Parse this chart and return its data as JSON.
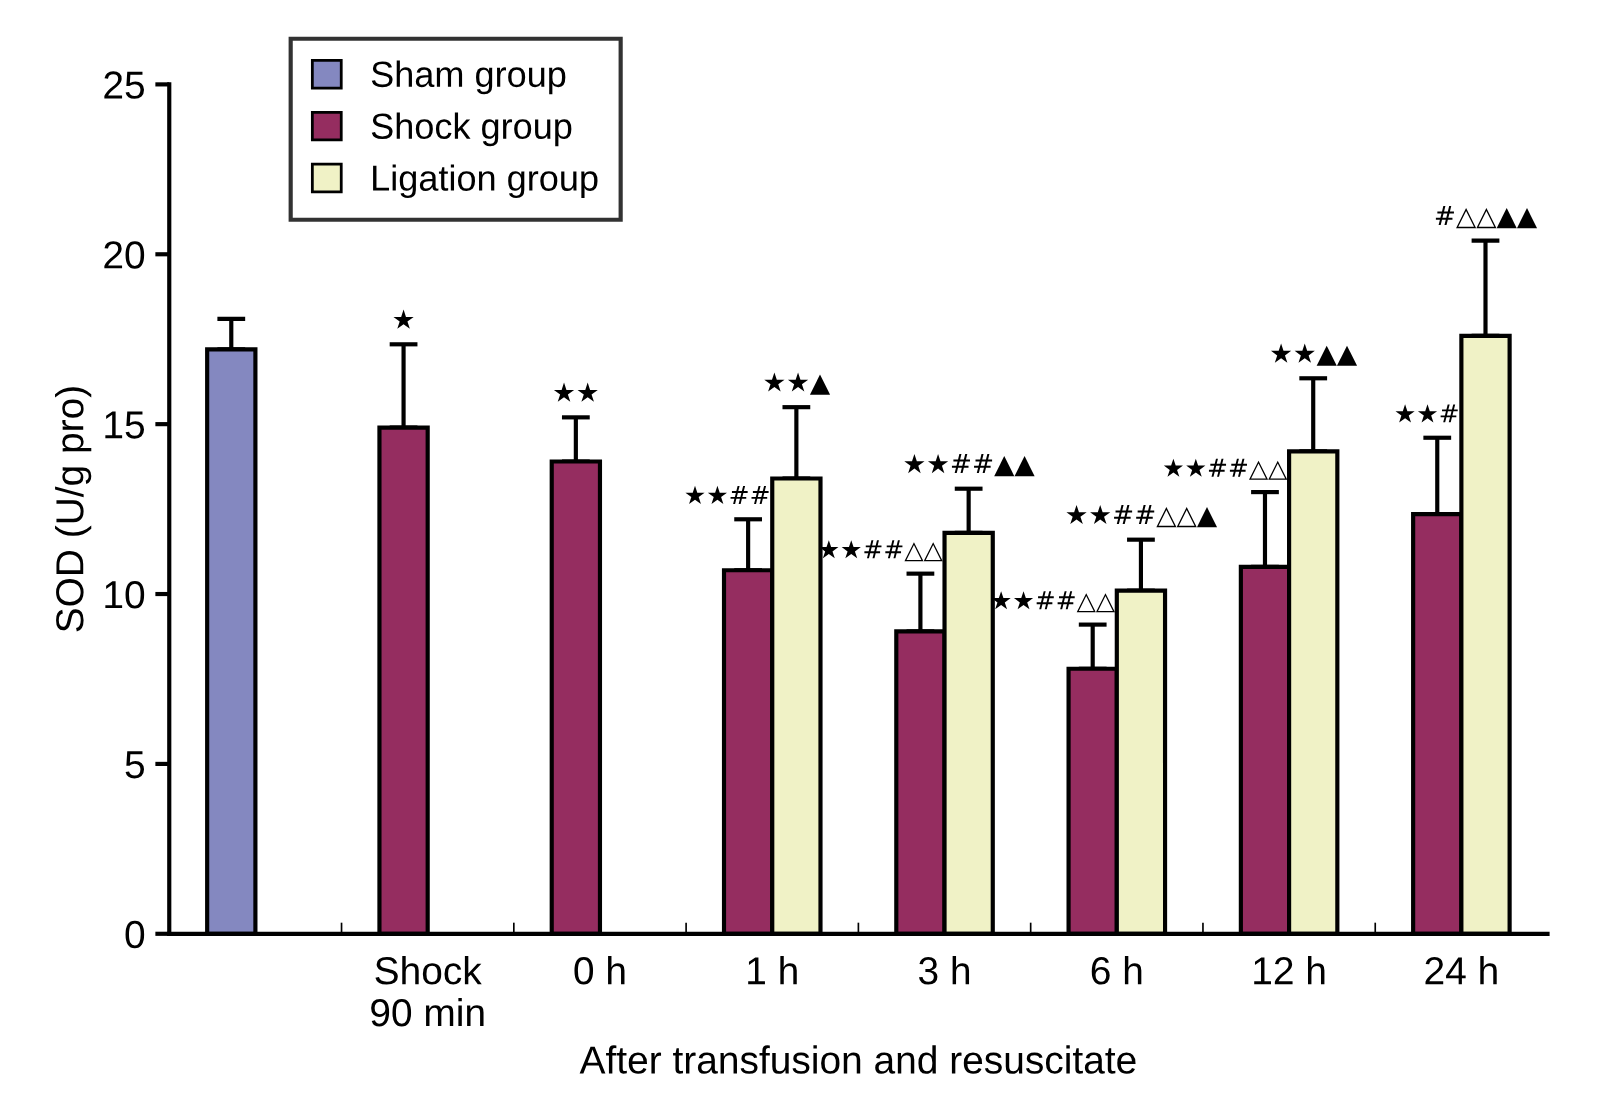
{
  "chart_data": {
    "type": "bar",
    "ylabel": "SOD (U/g pro)",
    "xlabel": "After transfusion and resuscitate",
    "categories": [
      null,
      "Shock\n90 min",
      "0 h",
      "1 h",
      "3 h",
      "6 h",
      "12 h",
      "24 h"
    ],
    "series": [
      {
        "name": "Sham group",
        "color": "#8488c0",
        "values": [
          17.2,
          null,
          null,
          null,
          null,
          null,
          null,
          null
        ],
        "errors": [
          [
            17.2,
            18.1
          ],
          null,
          null,
          null,
          null,
          null,
          null,
          null
        ]
      },
      {
        "name": "Shock group",
        "color": "#952d60",
        "values": [
          null,
          14.9,
          13.9,
          10.7,
          8.9,
          7.8,
          10.8,
          12.35
        ],
        "errors": [
          null,
          [
            14.9,
            17.35
          ],
          [
            13.9,
            15.2
          ],
          [
            10.7,
            12.2
          ],
          [
            8.9,
            10.6
          ],
          [
            7.8,
            9.1
          ],
          [
            10.8,
            13.0
          ],
          [
            12.35,
            14.6
          ]
        ]
      },
      {
        "name": "Ligation group",
        "color": "#f0f2c6",
        "values": [
          null,
          null,
          null,
          13.4,
          11.8,
          10.1,
          14.2,
          17.6
        ],
        "errors": [
          null,
          null,
          null,
          [
            13.4,
            15.5
          ],
          [
            11.8,
            13.1
          ],
          [
            10.1,
            11.6
          ],
          [
            14.2,
            16.35
          ],
          [
            17.6,
            20.4
          ]
        ]
      }
    ],
    "annotations": [
      "★",
      "★★",
      "★★##",
      "★★▲",
      "★★##△△",
      "★★##▲▲",
      "★★##△△",
      "★★##△△▲",
      "★★##△△",
      "★★▲▲",
      "★★#",
      "#△△▲▲"
    ],
    "ylim": [
      0,
      25
    ],
    "yticks": [
      0,
      5,
      10,
      15,
      20,
      25
    ],
    "legend": "top left",
    "grid": false
  }
}
